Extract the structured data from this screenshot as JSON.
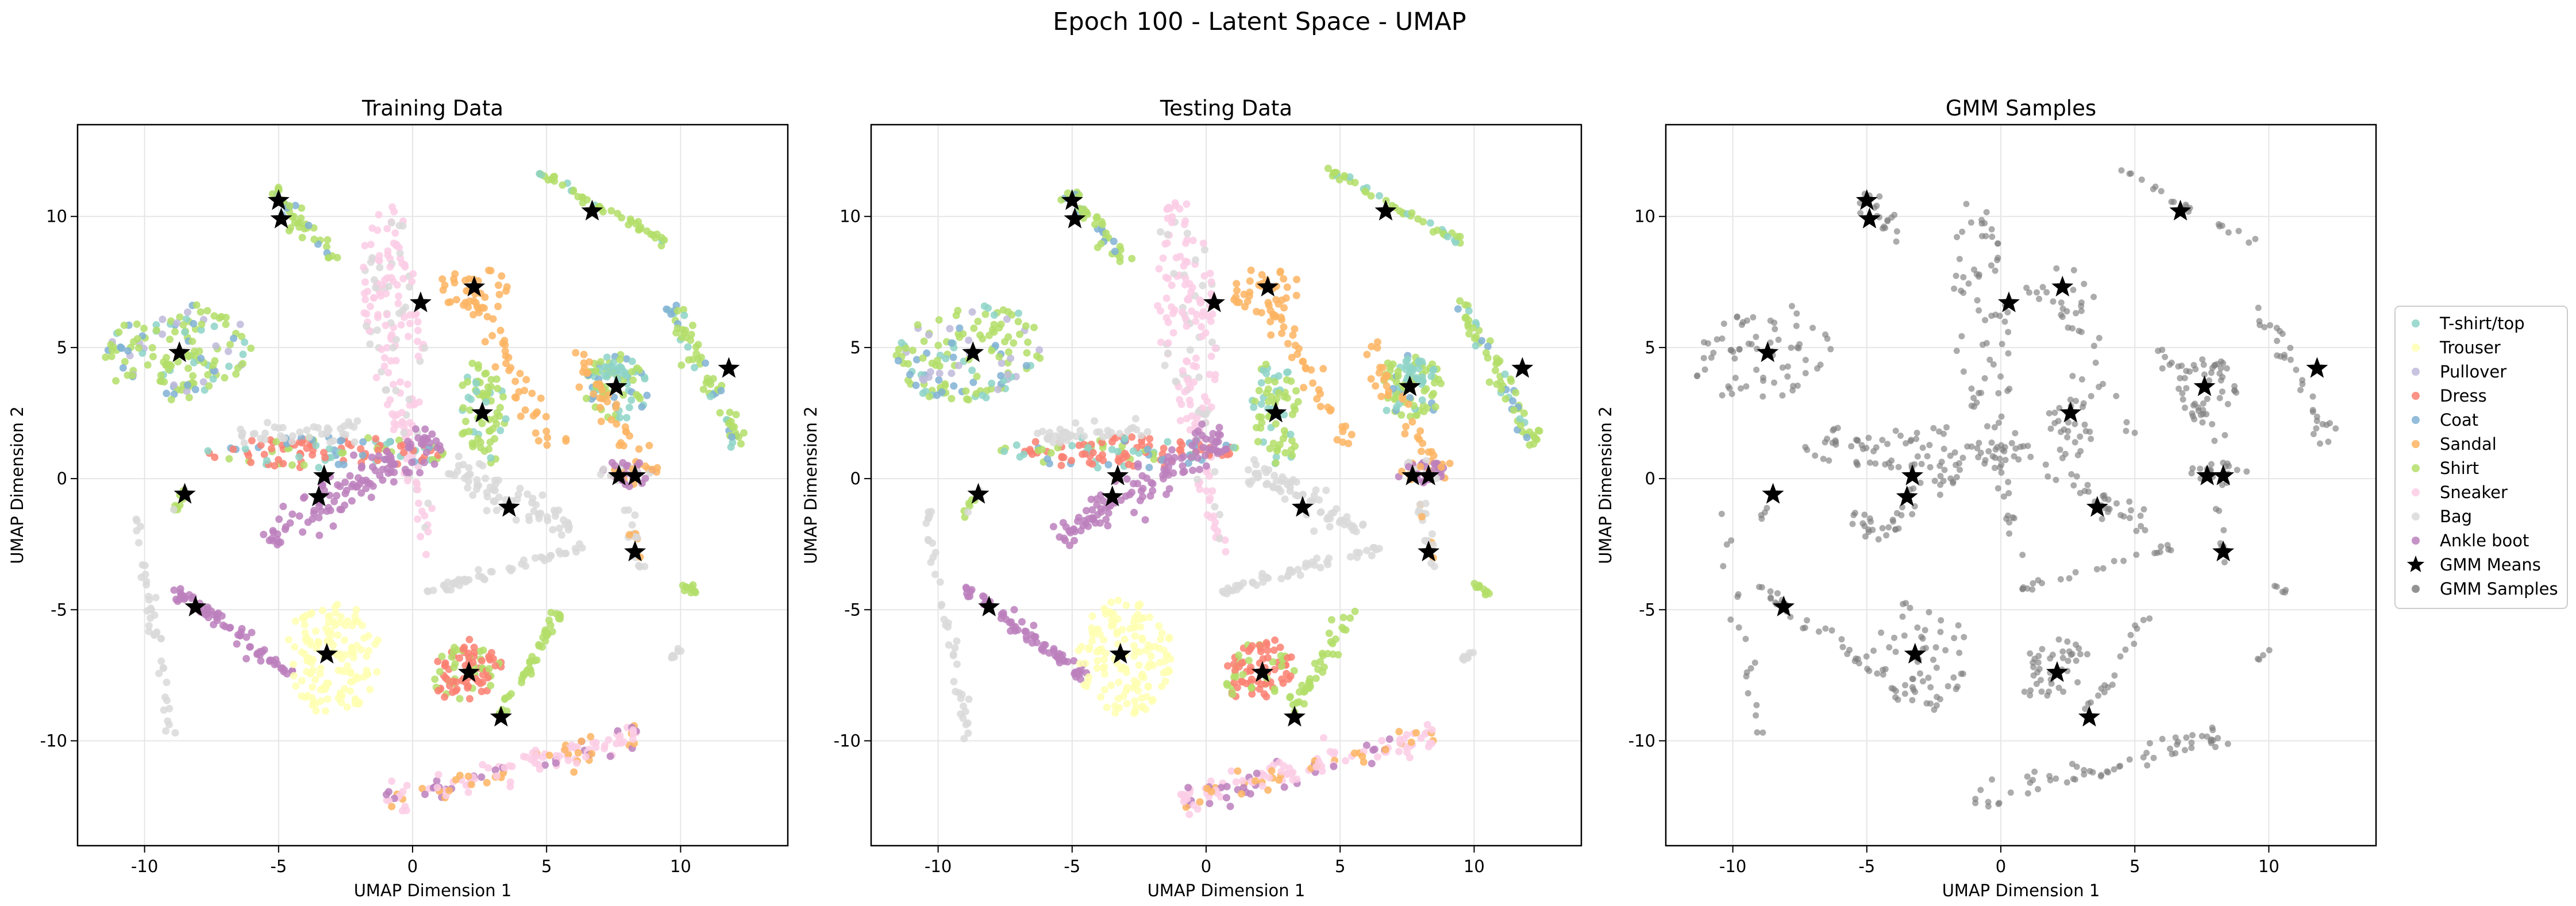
{
  "figure": {
    "suptitle": "Epoch 100 - Latent Space - UMAP"
  },
  "legend": {
    "placement": "right-center",
    "entries": [
      {
        "label": "T-shirt/top",
        "color": "#8dd3c7",
        "marker": "circle"
      },
      {
        "label": "Trouser",
        "color": "#ffffb3",
        "marker": "circle"
      },
      {
        "label": "Pullover",
        "color": "#bebada",
        "marker": "circle"
      },
      {
        "label": "Dress",
        "color": "#fb8072",
        "marker": "circle"
      },
      {
        "label": "Coat",
        "color": "#80b1d3",
        "marker": "circle"
      },
      {
        "label": "Sandal",
        "color": "#fdb462",
        "marker": "circle"
      },
      {
        "label": "Shirt",
        "color": "#b3de69",
        "marker": "circle"
      },
      {
        "label": "Sneaker",
        "color": "#fccde5",
        "marker": "circle"
      },
      {
        "label": "Bag",
        "color": "#d9d9d9",
        "marker": "circle"
      },
      {
        "label": "Ankle boot",
        "color": "#bc80bd",
        "marker": "circle"
      },
      {
        "label": "GMM Means",
        "color": "#000000",
        "marker": "star"
      },
      {
        "label": "GMM Samples",
        "color": "#808080",
        "marker": "circle"
      }
    ]
  },
  "chart_data": [
    {
      "type": "scatter",
      "title": "Training Data",
      "xlabel": "UMAP Dimension 1",
      "ylabel": "UMAP Dimension 2",
      "xlim": [
        -12.5,
        14
      ],
      "ylim": [
        -14,
        13.5
      ],
      "xticks": [
        -10,
        -5,
        0,
        5,
        10
      ],
      "yticks": [
        -10,
        -5,
        0,
        5,
        10
      ],
      "grid": true,
      "mode": "classes",
      "gmm_means": [
        [
          -5,
          10.6
        ],
        [
          -4.9,
          9.9
        ],
        [
          6.7,
          10.2
        ],
        [
          0.3,
          6.7
        ],
        [
          2.3,
          7.3
        ],
        [
          -8.7,
          4.8
        ],
        [
          11.8,
          4.2
        ],
        [
          2.6,
          2.5
        ],
        [
          7.6,
          3.5
        ],
        [
          -3.3,
          0.1
        ],
        [
          -3.5,
          -0.7
        ],
        [
          7.7,
          0.1
        ],
        [
          8.3,
          0.1
        ],
        [
          -8.5,
          -0.6
        ],
        [
          3.6,
          -1.1
        ],
        [
          8.3,
          -2.8
        ],
        [
          -8.1,
          -4.9
        ],
        [
          -3.2,
          -6.7
        ],
        [
          2.1,
          -7.4
        ],
        [
          3.3,
          -9.1
        ]
      ]
    },
    {
      "type": "scatter",
      "title": "Testing Data",
      "xlabel": "UMAP Dimension 1",
      "ylabel": "UMAP Dimension 2",
      "xlim": [
        -12.5,
        14
      ],
      "ylim": [
        -14,
        13.5
      ],
      "xticks": [
        -10,
        -5,
        0,
        5,
        10
      ],
      "yticks": [
        -10,
        -5,
        0,
        5,
        10
      ],
      "grid": true,
      "mode": "classes",
      "gmm_means": [
        [
          -5,
          10.6
        ],
        [
          -4.9,
          9.9
        ],
        [
          6.7,
          10.2
        ],
        [
          0.3,
          6.7
        ],
        [
          2.3,
          7.3
        ],
        [
          -8.7,
          4.8
        ],
        [
          11.8,
          4.2
        ],
        [
          2.6,
          2.5
        ],
        [
          7.6,
          3.5
        ],
        [
          -3.3,
          0.1
        ],
        [
          -3.5,
          -0.7
        ],
        [
          7.7,
          0.1
        ],
        [
          8.3,
          0.1
        ],
        [
          -8.5,
          -0.6
        ],
        [
          3.6,
          -1.1
        ],
        [
          8.3,
          -2.8
        ],
        [
          -8.1,
          -4.9
        ],
        [
          -3.2,
          -6.7
        ],
        [
          2.1,
          -7.4
        ],
        [
          3.3,
          -9.1
        ]
      ]
    },
    {
      "type": "scatter",
      "title": "GMM Samples",
      "xlabel": "UMAP Dimension 1",
      "ylabel": "UMAP Dimension 2",
      "xlim": [
        -12.5,
        14
      ],
      "ylim": [
        -14,
        13.5
      ],
      "xticks": [
        -10,
        -5,
        0,
        5,
        10
      ],
      "yticks": [
        -10,
        -5,
        0,
        5,
        10
      ],
      "grid": true,
      "mode": "samples",
      "gmm_means": [
        [
          -5,
          10.6
        ],
        [
          -4.9,
          9.9
        ],
        [
          6.7,
          10.2
        ],
        [
          0.3,
          6.7
        ],
        [
          2.3,
          7.3
        ],
        [
          -8.7,
          4.8
        ],
        [
          11.8,
          4.2
        ],
        [
          2.6,
          2.5
        ],
        [
          7.6,
          3.5
        ],
        [
          -3.3,
          0.1
        ],
        [
          -3.5,
          -0.7
        ],
        [
          7.7,
          0.1
        ],
        [
          8.3,
          0.1
        ],
        [
          -8.5,
          -0.6
        ],
        [
          3.6,
          -1.1
        ],
        [
          8.3,
          -2.8
        ],
        [
          -8.1,
          -4.9
        ],
        [
          -3.2,
          -6.7
        ],
        [
          2.1,
          -7.4
        ],
        [
          3.3,
          -9.1
        ]
      ]
    }
  ],
  "clusters": [
    {
      "class": "Shirt",
      "mix": [
        "Coat",
        "Pullover",
        "T-shirt/top"
      ],
      "shape": "blob",
      "cx": -8.8,
      "cy": 4.8,
      "rx": 2.8,
      "ry": 1.8,
      "angle": 10,
      "n": 150
    },
    {
      "class": "Shirt",
      "mix": [
        "Coat"
      ],
      "shape": "line",
      "x1": -5.2,
      "y1": 11.0,
      "x2": -3.0,
      "y2": 8.2,
      "width": 0.4,
      "n": 40
    },
    {
      "class": "Shirt",
      "mix": [
        "T-shirt/top"
      ],
      "shape": "line",
      "x1": 4.5,
      "y1": 11.8,
      "x2": 9.5,
      "y2": 9.0,
      "width": 0.2,
      "n": 45
    },
    {
      "class": "Shirt",
      "mix": [
        "T-shirt/top",
        "Coat"
      ],
      "shape": "line",
      "x1": 9.5,
      "y1": 6.8,
      "x2": 12.3,
      "y2": 1.2,
      "width": 0.4,
      "n": 70
    },
    {
      "class": "Sneaker",
      "mix": [
        "Bag"
      ],
      "shape": "blob",
      "cx": -0.7,
      "cy": 6.2,
      "rx": 1.1,
      "ry": 4.5,
      "angle": 5,
      "n": 140
    },
    {
      "class": "Sneaker",
      "mix": [
        "Bag"
      ],
      "shape": "line",
      "x1": -0.4,
      "y1": 2.5,
      "x2": 0.6,
      "y2": -3.0,
      "width": 0.4,
      "n": 40
    },
    {
      "class": "Sandal",
      "mix": [],
      "shape": "blob",
      "cx": 2.3,
      "cy": 7.2,
      "rx": 1.4,
      "ry": 0.9,
      "angle": 0,
      "n": 35
    },
    {
      "class": "Sandal",
      "mix": [],
      "shape": "line",
      "x1": 2.5,
      "y1": 6.5,
      "x2": 5.3,
      "y2": 1.0,
      "width": 0.5,
      "n": 40
    },
    {
      "class": "Shirt",
      "mix": [
        "T-shirt/top"
      ],
      "shape": "blob",
      "cx": 2.6,
      "cy": 2.5,
      "rx": 0.9,
      "ry": 2.0,
      "angle": 5,
      "n": 70
    },
    {
      "class": "Shirt",
      "mix": [
        "T-shirt/top",
        "Coat"
      ],
      "shape": "blob",
      "cx": 7.6,
      "cy": 3.5,
      "rx": 1.2,
      "ry": 1.3,
      "angle": 0,
      "n": 70
    },
    {
      "class": "T-shirt/top",
      "mix": [
        "Shirt"
      ],
      "shape": "blob",
      "cx": 7.8,
      "cy": 4.1,
      "rx": 0.7,
      "ry": 0.5,
      "angle": 0,
      "n": 25
    },
    {
      "class": "Sandal",
      "mix": [],
      "shape": "line",
      "x1": 6.0,
      "y1": 5.0,
      "x2": 9.0,
      "y2": 0.0,
      "width": 0.5,
      "n": 40
    },
    {
      "class": "Dress",
      "mix": [
        "Shirt",
        "Coat",
        "T-shirt/top"
      ],
      "shape": "blob",
      "cx": -3.2,
      "cy": 1.0,
      "rx": 4.5,
      "ry": 0.6,
      "angle": 0,
      "n": 130
    },
    {
      "class": "Ankle boot",
      "mix": [],
      "shape": "line",
      "x1": -5.5,
      "y1": -2.3,
      "x2": 0.8,
      "y2": 1.6,
      "width": 0.8,
      "n": 120
    },
    {
      "class": "Ankle boot",
      "mix": [
        "Sandal",
        "Bag"
      ],
      "shape": "blob",
      "cx": 8.0,
      "cy": 0.2,
      "rx": 1.0,
      "ry": 0.5,
      "angle": 0,
      "n": 40
    },
    {
      "class": "Bag",
      "mix": [],
      "shape": "line",
      "x1": 1.5,
      "y1": 0.5,
      "x2": 5.8,
      "y2": -2.0,
      "width": 0.6,
      "n": 70
    },
    {
      "class": "Bag",
      "mix": [],
      "shape": "line",
      "x1": -10.5,
      "y1": -1.0,
      "x2": -8.9,
      "y2": -10.0,
      "width": 0.3,
      "n": 40
    },
    {
      "class": "Bag",
      "mix": [],
      "shape": "line",
      "x1": -6.5,
      "y1": 1.6,
      "x2": -2.0,
      "y2": 1.8,
      "width": 0.4,
      "n": 40
    },
    {
      "class": "Bag",
      "mix": [],
      "shape": "line",
      "x1": 0.5,
      "y1": -4.3,
      "x2": 6.5,
      "y2": -2.6,
      "width": 0.2,
      "n": 50
    },
    {
      "class": "Bag",
      "mix": [
        "Sandal"
      ],
      "shape": "line",
      "x1": 8.0,
      "y1": -0.8,
      "x2": 8.5,
      "y2": -3.5,
      "width": 0.2,
      "n": 20
    },
    {
      "class": "Shirt",
      "mix": [],
      "shape": "line",
      "x1": 10.0,
      "y1": -4.0,
      "x2": 10.6,
      "y2": -4.4,
      "width": 0.15,
      "n": 10
    },
    {
      "class": "Bag",
      "mix": [],
      "shape": "line",
      "x1": 9.5,
      "y1": -7.0,
      "x2": 10.0,
      "y2": -6.5,
      "width": 0.1,
      "n": 8
    },
    {
      "class": "Ankle boot",
      "mix": [],
      "shape": "line",
      "x1": -9.0,
      "y1": -4.1,
      "x2": -4.5,
      "y2": -7.5,
      "width": 0.35,
      "n": 70
    },
    {
      "class": "Trouser",
      "mix": [],
      "shape": "blob",
      "cx": -3.0,
      "cy": -6.8,
      "rx": 1.8,
      "ry": 2.2,
      "angle": 0,
      "n": 140
    },
    {
      "class": "Dress",
      "mix": [
        "Shirt"
      ],
      "shape": "blob",
      "cx": 2.0,
      "cy": -7.3,
      "rx": 1.4,
      "ry": 1.1,
      "angle": 30,
      "n": 90
    },
    {
      "class": "Shirt",
      "mix": [],
      "shape": "line",
      "x1": 3.2,
      "y1": -9.0,
      "x2": 5.5,
      "y2": -5.0,
      "width": 0.3,
      "n": 40
    },
    {
      "class": "Sneaker",
      "mix": [
        "Ankle boot",
        "Sandal"
      ],
      "shape": "line",
      "x1": -1.0,
      "y1": -12.3,
      "x2": 8.5,
      "y2": -9.8,
      "width": 0.6,
      "n": 140
    },
    {
      "class": "Shirt",
      "mix": [
        "Bag"
      ],
      "shape": "line",
      "x1": -9.0,
      "y1": -1.5,
      "x2": -8.5,
      "y2": -0.4,
      "width": 0.15,
      "n": 10
    }
  ]
}
